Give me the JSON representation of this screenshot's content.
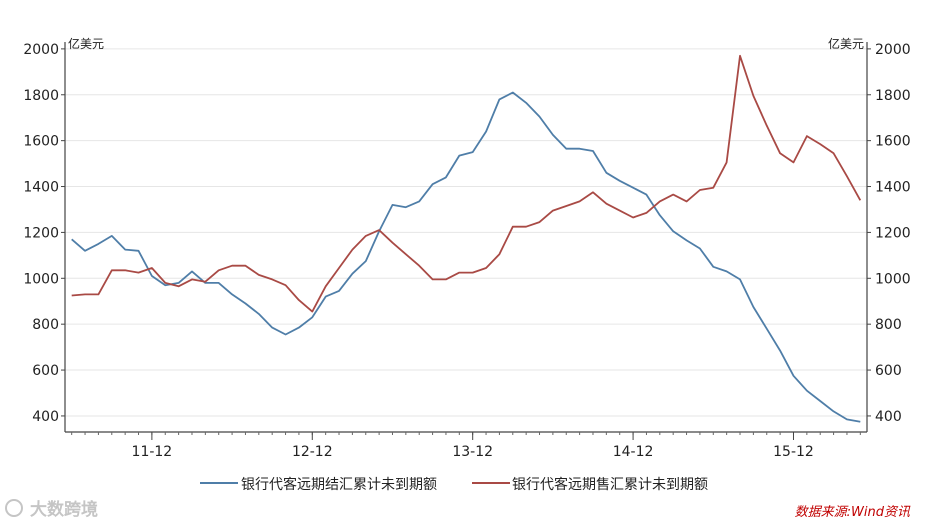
{
  "chart_data": {
    "type": "line",
    "left_axis": {
      "unit": "亿美元",
      "ticks": [
        "2000",
        "1800",
        "1600",
        "1400",
        "1200",
        "1000",
        "800",
        "600",
        "400"
      ],
      "ylim": [
        330,
        2030
      ]
    },
    "right_axis": {
      "unit": "亿美元",
      "ticks": [
        "2000",
        "1800",
        "1600",
        "1400",
        "1200",
        "1000",
        "800",
        "600",
        "400"
      ],
      "ylim": [
        330,
        2030
      ]
    },
    "x_ticks": [
      {
        "label": "11-12",
        "x": 5
      },
      {
        "label": "12-12",
        "x": 17
      },
      {
        "label": "13-12",
        "x": 29
      },
      {
        "label": "14-12",
        "x": 41
      },
      {
        "label": "15-12",
        "x": 53
      }
    ],
    "xlim": [
      -1.5,
      58.5
    ],
    "grid": true,
    "legend_position": "bottom",
    "series": [
      {
        "name": "银行代客远期结汇累计未到期额",
        "color": "#4f7ea8",
        "axis": "left",
        "x": [
          -1,
          0,
          1,
          2,
          3,
          4,
          5,
          6,
          7,
          8,
          9,
          10,
          11,
          12,
          13,
          14,
          15,
          16,
          17,
          18,
          19,
          20,
          21,
          22,
          23,
          24,
          25,
          26,
          27,
          28,
          29,
          30,
          31,
          32,
          33,
          34,
          35,
          36,
          37,
          38,
          39,
          40,
          41,
          42,
          43,
          44,
          45,
          46,
          47,
          48,
          49,
          50,
          51,
          52,
          53,
          54,
          55,
          56,
          57,
          58
        ],
        "y": [
          1170,
          1120,
          1150,
          1185,
          1125,
          1120,
          1010,
          970,
          980,
          1030,
          980,
          980,
          930,
          890,
          845,
          785,
          755,
          785,
          830,
          920,
          945,
          1020,
          1075,
          1205,
          1320,
          1310,
          1335,
          1410,
          1440,
          1535,
          1550,
          1640,
          1780,
          1810,
          1765,
          1705,
          1625,
          1565,
          1565,
          1555,
          1460,
          1425,
          1395,
          1365,
          1275,
          1205,
          1165,
          1130,
          1050,
          1030,
          995,
          875,
          780,
          685,
          575,
          510,
          465,
          420,
          385,
          375
        ]
      },
      {
        "name": "银行代客远期售汇累计未到期额",
        "color": "#a94a45",
        "axis": "right",
        "x": [
          -1,
          0,
          1,
          2,
          3,
          4,
          5,
          6,
          7,
          8,
          9,
          10,
          11,
          12,
          13,
          14,
          15,
          16,
          17,
          18,
          19,
          20,
          21,
          22,
          23,
          24,
          25,
          26,
          27,
          28,
          29,
          30,
          31,
          32,
          33,
          34,
          35,
          36,
          37,
          38,
          39,
          40,
          41,
          42,
          43,
          44,
          45,
          46,
          47,
          48,
          49,
          50,
          51,
          52,
          53,
          54,
          55,
          56,
          57,
          58
        ],
        "y": [
          925,
          930,
          930,
          1035,
          1035,
          1025,
          1045,
          980,
          965,
          995,
          985,
          1035,
          1055,
          1055,
          1015,
          995,
          970,
          905,
          855,
          965,
          1045,
          1125,
          1185,
          1210,
          1155,
          1105,
          1055,
          995,
          995,
          1025,
          1025,
          1045,
          1105,
          1225,
          1225,
          1245,
          1295,
          1315,
          1335,
          1375,
          1325,
          1295,
          1265,
          1285,
          1335,
          1365,
          1335,
          1385,
          1395,
          1505,
          1970,
          1795,
          1665,
          1545,
          1505,
          1620,
          1585,
          1545,
          1445,
          1340
        ]
      }
    ]
  },
  "source_note": "数据来源:Wind资讯",
  "watermark": "大数跨境"
}
